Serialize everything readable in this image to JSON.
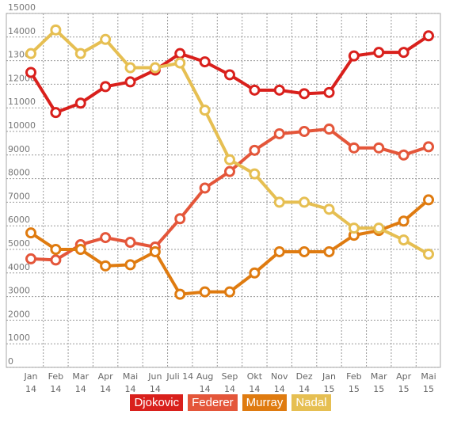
{
  "chart_data": {
    "type": "line",
    "categories": [
      "Jan 14",
      "Feb 14",
      "Mar 14",
      "Apr 14",
      "Mai 14",
      "Jun 14",
      "Juli 14",
      "Aug 14",
      "Sep 14",
      "Okt 14",
      "Nov 14",
      "Dez 14",
      "Jan 15",
      "Feb 15",
      "Mar 15",
      "Apr 15",
      "Mai 15"
    ],
    "series": [
      {
        "name": "Djokovic",
        "color": "#d9201c",
        "values": [
          12500,
          10800,
          11200,
          11900,
          12100,
          12600,
          13300,
          12950,
          12400,
          11750,
          11750,
          11600,
          11650,
          13200,
          13350,
          13350,
          14050
        ]
      },
      {
        "name": "Federer",
        "color": "#e4563a",
        "values": [
          4600,
          4550,
          5200,
          5500,
          5300,
          5100,
          6300,
          7600,
          8300,
          9200,
          9900,
          10000,
          10100,
          9300,
          9300,
          9000,
          9350
        ]
      },
      {
        "name": "Murray",
        "color": "#df7b10",
        "values": [
          5700,
          5000,
          5000,
          4300,
          4350,
          4900,
          3100,
          3200,
          3200,
          4000,
          4900,
          4900,
          4900,
          5600,
          5800,
          6200,
          7100
        ]
      },
      {
        "name": "Nadal",
        "color": "#e6bf52",
        "values": [
          13300,
          14300,
          13300,
          13900,
          12700,
          12700,
          12900,
          10900,
          8800,
          8200,
          7000,
          7000,
          6700,
          5900,
          5900,
          5400,
          4800
        ]
      }
    ],
    "ylim": [
      0,
      15000
    ],
    "yticks": [
      0,
      1000,
      2000,
      3000,
      4000,
      5000,
      6000,
      7000,
      8000,
      9000,
      10000,
      11000,
      12000,
      13000,
      14000,
      15000
    ],
    "grid": true
  }
}
